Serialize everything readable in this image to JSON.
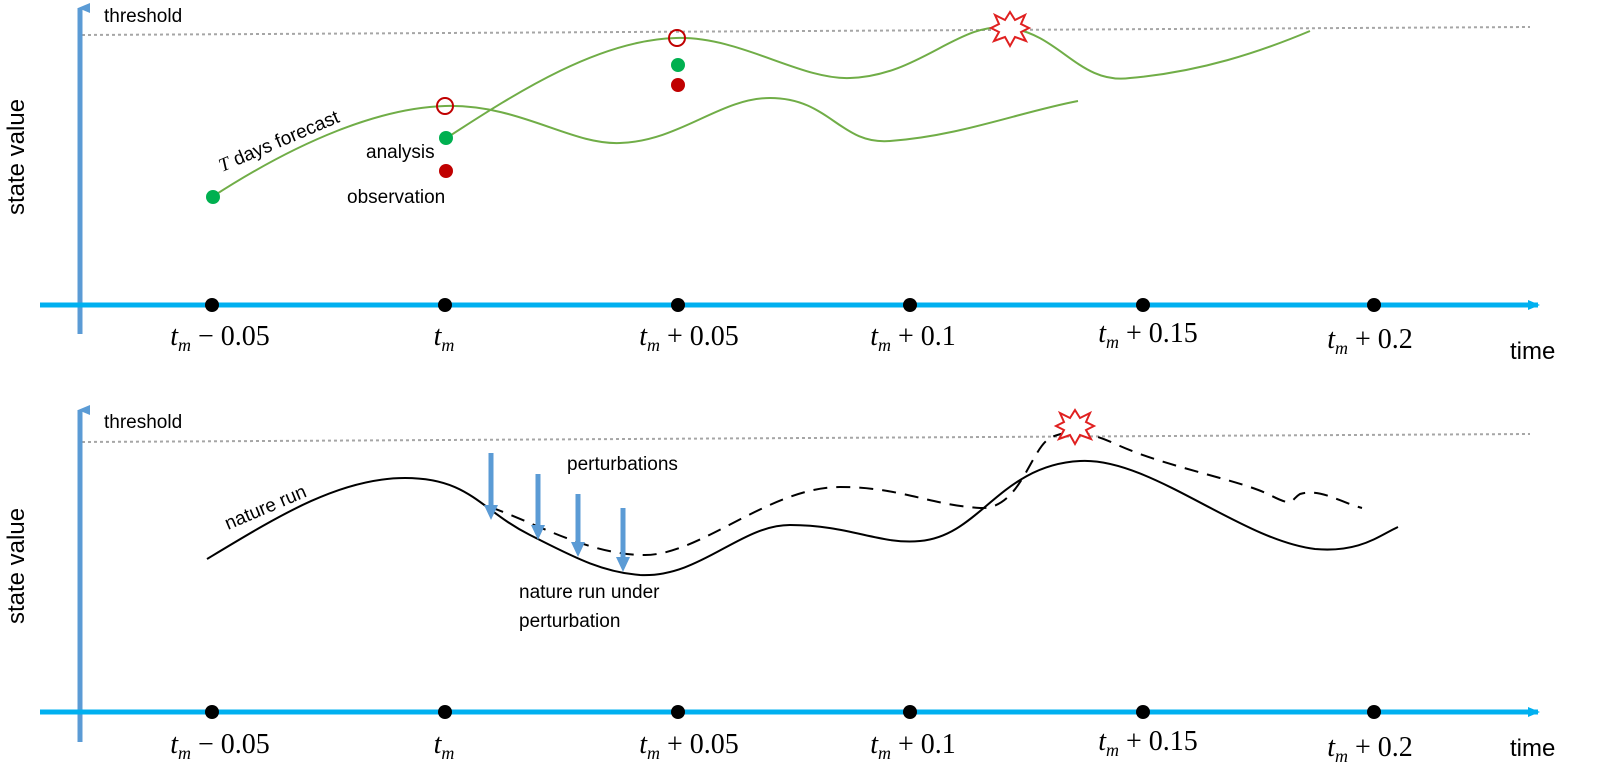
{
  "colors": {
    "axis_time": "#00b0f0",
    "axis_state": "#5b9bd5",
    "forecast": "#70ad47",
    "analysis": "#00b050",
    "observation": "#c00000",
    "threshold": "#a6a6a6",
    "explosion": "#e02020",
    "arrow": "#5b9bd5"
  },
  "tick_labels": [
    {
      "var": "t",
      "sub": "m",
      "rest": " − 0.05"
    },
    {
      "var": "t",
      "sub": "m",
      "rest": ""
    },
    {
      "var": "t",
      "sub": "m",
      "rest": " + 0.05"
    },
    {
      "var": "t",
      "sub": "m",
      "rest": " + 0.1"
    },
    {
      "var": "t",
      "sub": "m",
      "rest": " + 0.15"
    },
    {
      "var": "t",
      "sub": "m",
      "rest": " + 0.2"
    }
  ],
  "top": {
    "y_label": "state value",
    "x_label": "time",
    "threshold_label": "threshold",
    "forecast_label_var": "T",
    "forecast_label_rest": " days forecast",
    "analysis_label": "analysis",
    "observation_label": "observation"
  },
  "bottom": {
    "y_label": "state value",
    "x_label": "time",
    "threshold_label": "threshold",
    "nature_run_label": "nature run",
    "perturbations_label": "perturbations",
    "perturbed_label_line1": "nature run under",
    "perturbed_label_line2": "perturbation"
  }
}
